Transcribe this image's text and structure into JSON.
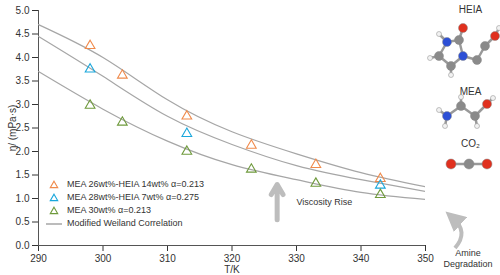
{
  "chart_data": {
    "type": "scatter",
    "x_label": "T/K",
    "y_label": "η/ (mPa·s)",
    "xlim": [
      290,
      350
    ],
    "xticks": [
      290,
      300,
      310,
      320,
      330,
      340,
      350
    ],
    "ylim": [
      0,
      5
    ],
    "yticks": [
      {
        "value": 0,
        "label": "0.0"
      },
      0.5,
      {
        "value": 1,
        "label": "1.0"
      },
      1.5,
      {
        "value": 2,
        "label": "2.0"
      },
      2.5,
      {
        "value": 3,
        "label": "3.0"
      },
      3.5,
      {
        "value": 4,
        "label": "4.0"
      },
      4.5,
      {
        "value": 5,
        "label": "5.0"
      }
    ],
    "legend": "bottom-left",
    "series": [
      {
        "name": "MEA 26wt%-HEIA 14wt% α=0.213",
        "type": "scatter",
        "marker": "triangle",
        "color": "#f08a4b",
        "x": [
          298,
          303,
          313,
          323,
          333,
          343
        ],
        "values": [
          4.25,
          3.62,
          2.75,
          2.13,
          1.72,
          1.42
        ]
      },
      {
        "name": "MEA 28wt%-HEIA 7wt% α=0.275",
        "type": "scatter",
        "marker": "triangle",
        "color": "#1aa7dc",
        "x": [
          298,
          313,
          343
        ],
        "values": [
          3.75,
          2.38,
          1.28
        ]
      },
      {
        "name": "MEA 30wt% α=0.213",
        "type": "scatter",
        "marker": "triangle",
        "color": "#6f9a3c",
        "x": [
          298,
          303,
          313,
          323,
          333,
          343
        ],
        "values": [
          2.98,
          2.62,
          2.0,
          1.62,
          1.32,
          1.08
        ]
      },
      {
        "name": "Modified Weiland Correlation",
        "type": "line",
        "color": "#a6a6a6",
        "x": [
          290,
          300,
          310,
          320,
          330,
          340,
          350
        ],
        "values": [
          [
            4.7,
            4.0,
            3.1,
            2.42,
            1.95,
            1.55,
            1.25
          ],
          [
            4.45,
            3.6,
            2.75,
            2.15,
            1.7,
            1.4,
            1.15
          ],
          [
            3.7,
            2.9,
            2.22,
            1.72,
            1.4,
            1.13,
            0.98
          ]
        ]
      }
    ],
    "annotations": [
      "Viscosity Rise",
      "Amine Degradation"
    ],
    "molecules": [
      "HEIA",
      "MEA",
      "CO₂"
    ]
  }
}
